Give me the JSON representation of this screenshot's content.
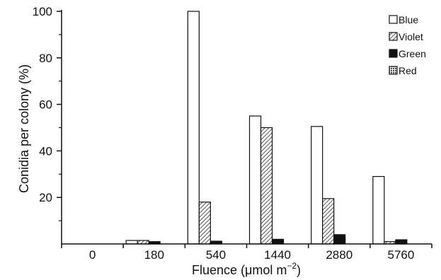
{
  "chart_data": {
    "type": "bar",
    "xlabel": "Fluence (μmol m",
    "xlabel_sup": "−2",
    "xlabel_close": ")",
    "ylabel": "Conidia per colony (%)",
    "categories": [
      "0",
      "180",
      "540",
      "1440",
      "2880",
      "5760"
    ],
    "ylim": [
      0,
      100
    ],
    "yticks": [
      20,
      40,
      60,
      80,
      100
    ],
    "legend_position": "top-right",
    "grid": false,
    "series": [
      {
        "name": "Blue",
        "pattern": "white",
        "color": "#ffffff",
        "values": [
          0,
          1.5,
          100,
          55,
          50.5,
          29
        ]
      },
      {
        "name": "Violet",
        "pattern": "hatched",
        "color": "#9a9a9a",
        "values": [
          0,
          1.5,
          18,
          50,
          19.5,
          1
        ]
      },
      {
        "name": "Green",
        "pattern": "solid",
        "color": "#111111",
        "values": [
          0,
          1,
          1.2,
          2,
          4,
          1.8
        ]
      },
      {
        "name": "Red",
        "pattern": "dotted",
        "color": "#7a7a7a",
        "values": [
          0,
          0,
          0,
          0,
          0,
          0
        ]
      }
    ]
  }
}
